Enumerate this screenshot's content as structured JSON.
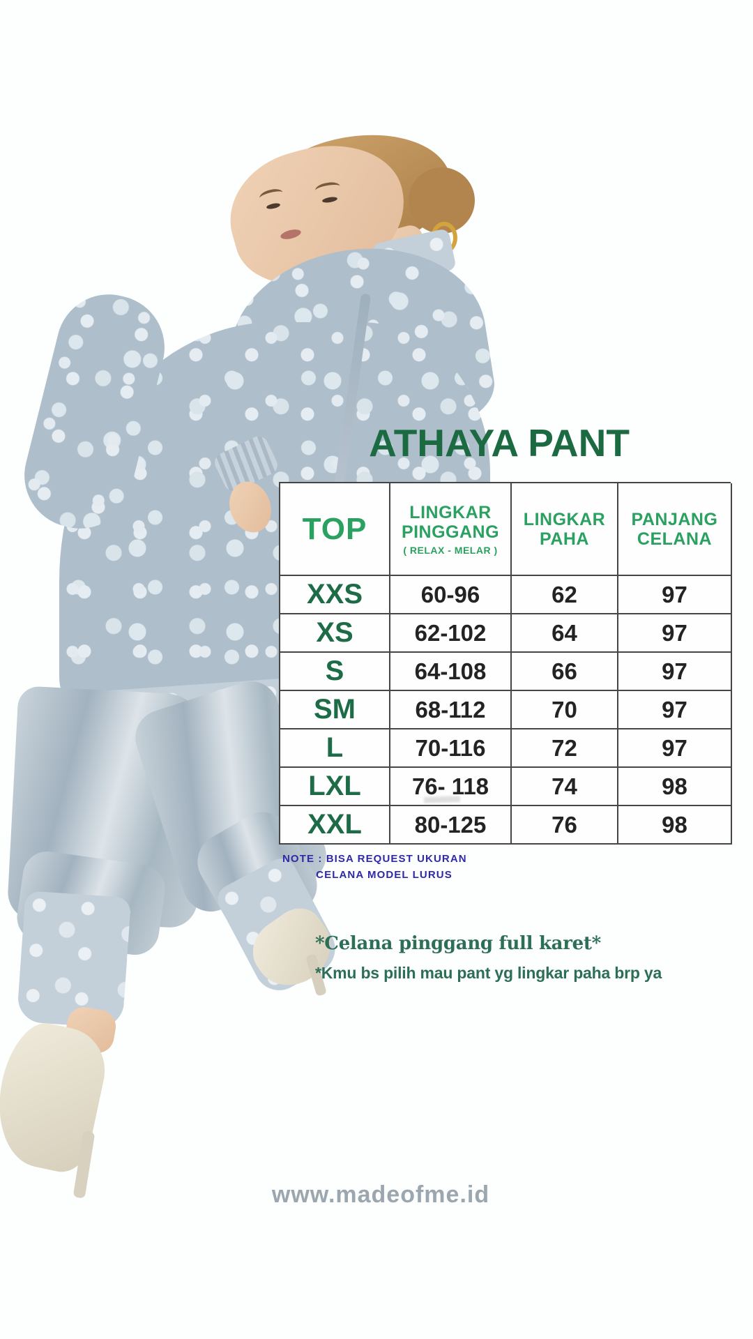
{
  "page": {
    "background": "#fcfffe"
  },
  "title": {
    "text": "ATHAYA PANT",
    "color": "#1c6a42"
  },
  "size_table": {
    "border_color": "#454545",
    "header_color": "#2aa061",
    "size_color": "#1d6b47",
    "value_color": "#232323",
    "columns": [
      {
        "label": "TOP",
        "sublabel": ""
      },
      {
        "label": "LINGKAR PINGGANG",
        "sublabel": "( RELAX - MELAR )"
      },
      {
        "label": "LINGKAR PAHA",
        "sublabel": ""
      },
      {
        "label": "PANJANG CELANA",
        "sublabel": ""
      }
    ],
    "rows": [
      {
        "size": "XXS",
        "pinggang": "60-96",
        "paha": "62",
        "panjang": "97"
      },
      {
        "size": "XS",
        "pinggang": "62-102",
        "paha": "64",
        "panjang": "97"
      },
      {
        "size": "S",
        "pinggang": "64-108",
        "paha": "66",
        "panjang": "97"
      },
      {
        "size": "SM",
        "pinggang": "68-112",
        "paha": "70",
        "panjang": "97"
      },
      {
        "size": "L",
        "pinggang": "70-116",
        "paha": "72",
        "panjang": "97"
      },
      {
        "size": "LXL",
        "pinggang": "76- 118",
        "paha": "74",
        "panjang": "98"
      },
      {
        "size": "XXL",
        "pinggang": "80-125",
        "paha": "76",
        "panjang": "98"
      }
    ]
  },
  "note": {
    "line1": "NOTE : BISA REQUEST UKURAN",
    "line2": "CELANA MODEL LURUS",
    "color": "#2f28a9"
  },
  "remarks": {
    "line1": "*Celana pinggang full karet*",
    "line2": "*Kmu bs pilih mau pant yg lingkar paha brp ya",
    "color": "#2c6e56"
  },
  "footer": {
    "website": "www.madeofme.id",
    "color": "#9ba6af"
  },
  "model_photo": {
    "description": "Model wearing grey-blue floral lace tunic and matching satin pants with lace ankle cuffs, cream high heels",
    "tunic_color": "#aebecb",
    "pants_color": "#b4c1cb",
    "shoe_color": "#e9e3d4"
  },
  "chart_data": {
    "type": "table",
    "title": "ATHAYA PANT",
    "columns": [
      "TOP",
      "LINGKAR PINGGANG ( RELAX - MELAR )",
      "LINGKAR PAHA",
      "PANJANG CELANA"
    ],
    "rows": [
      [
        "XXS",
        "60-96",
        "62",
        "97"
      ],
      [
        "XS",
        "62-102",
        "64",
        "97"
      ],
      [
        "S",
        "64-108",
        "66",
        "97"
      ],
      [
        "SM",
        "68-112",
        "70",
        "97"
      ],
      [
        "L",
        "70-116",
        "72",
        "97"
      ],
      [
        "LXL",
        "76- 118",
        "74",
        "98"
      ],
      [
        "XXL",
        "80-125",
        "76",
        "98"
      ]
    ],
    "notes": [
      "NOTE : BISA REQUEST UKURAN CELANA MODEL LURUS",
      "*Celana pinggang full karet*",
      "*Kmu bs pilih mau pant yg lingkar paha brp ya"
    ]
  }
}
